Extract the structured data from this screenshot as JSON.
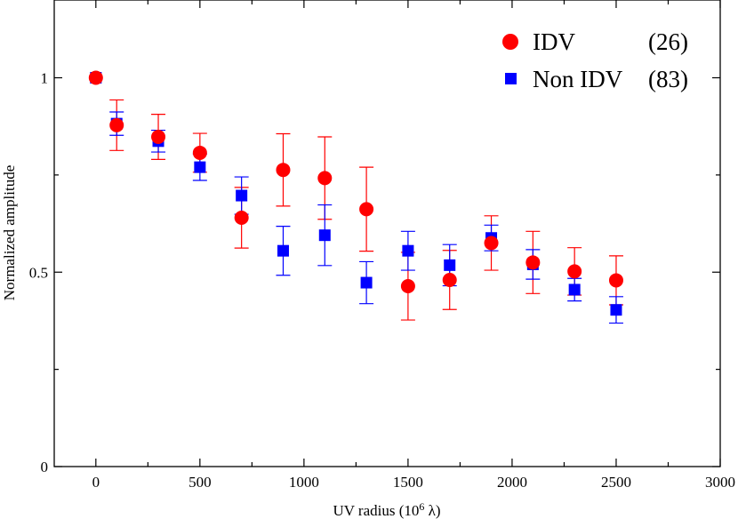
{
  "chart_data": {
    "type": "scatter",
    "title": "",
    "xlabel": "UV radius (10",
    "xlabel_sup": "6",
    "xlabel_tail": " λ)",
    "ylabel": "Normalized amplitude",
    "xlim": [
      -200,
      3000
    ],
    "ylim": [
      0,
      1.2
    ],
    "x_ticks": [
      0,
      500,
      1000,
      1500,
      2000,
      2500,
      3000
    ],
    "x_tick_labels": [
      "0",
      "500",
      "1000",
      "1500",
      "2000",
      "2500",
      "3000"
    ],
    "y_ticks": [
      0,
      0.5,
      1
    ],
    "y_tick_labels": [
      "0",
      "0.5",
      "1"
    ],
    "y_minor_ticks": [
      0.25,
      0.75
    ],
    "legend_position": "top-right",
    "series": [
      {
        "name": "IDV",
        "count_label": "(26)",
        "marker": "circle",
        "color": "#ff0000",
        "x": [
          0,
          100,
          300,
          500,
          700,
          900,
          1100,
          1300,
          1500,
          1700,
          1900,
          2100,
          2300,
          2500
        ],
        "y": [
          1.0,
          0.878,
          0.848,
          0.807,
          0.64,
          0.763,
          0.742,
          0.662,
          0.464,
          0.48,
          0.575,
          0.525,
          0.502,
          0.479
        ],
        "err": [
          0.0,
          0.065,
          0.058,
          0.05,
          0.078,
          0.093,
          0.106,
          0.108,
          0.087,
          0.076,
          0.07,
          0.08,
          0.061,
          0.063
        ]
      },
      {
        "name": "Non IDV",
        "count_label": "(83)",
        "marker": "square",
        "color": "#0000ff",
        "x": [
          0,
          100,
          300,
          500,
          700,
          900,
          1100,
          1300,
          1500,
          1700,
          1900,
          2100,
          2300,
          2500
        ],
        "y": [
          1.0,
          0.882,
          0.837,
          0.77,
          0.697,
          0.555,
          0.595,
          0.473,
          0.555,
          0.518,
          0.588,
          0.52,
          0.455,
          0.403
        ],
        "err": [
          0.0,
          0.03,
          0.028,
          0.034,
          0.048,
          0.063,
          0.078,
          0.054,
          0.05,
          0.053,
          0.033,
          0.038,
          0.029,
          0.034
        ]
      }
    ]
  }
}
